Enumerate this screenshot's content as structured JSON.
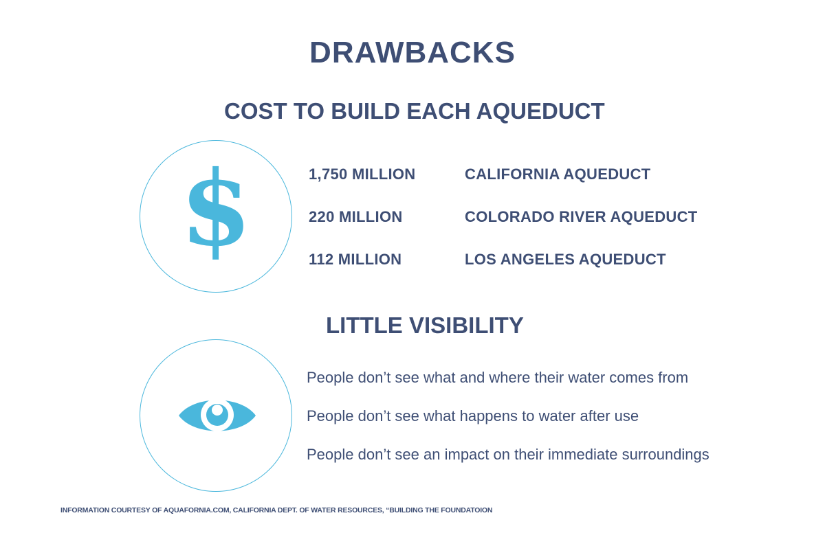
{
  "title": "DRAWBACKS",
  "cost_section": {
    "heading": "COST TO BUILD EACH AQUEDUCT",
    "icon": "dollar-sign-icon",
    "icon_glyph": "$",
    "rows": [
      {
        "amount": "1,750 MILLION",
        "name": "CALIFORNIA AQUEDUCT"
      },
      {
        "amount": "220 MILLION",
        "name": "COLORADO RIVER AQUEDUCT"
      },
      {
        "amount": "112 MILLION",
        "name": "LOS ANGELES AQUEDUCT"
      }
    ]
  },
  "visibility_section": {
    "heading": "LITTLE VISIBILITY",
    "icon": "eye-icon",
    "items": [
      "People don’t see what and where their water comes from",
      "People don’t see what happens to water after use",
      "People don’t see an impact on their immediate surroundings"
    ]
  },
  "footer": "INFORMATION COURTESY OF AQUAFORNIA.COM, CALIFORNIA DEPT. OF WATER RESOURCES, “BUILDING THE FOUNDATOION",
  "colors": {
    "text": "#3e4e74",
    "accent": "#4ab7dc",
    "background": "#ffffff"
  }
}
